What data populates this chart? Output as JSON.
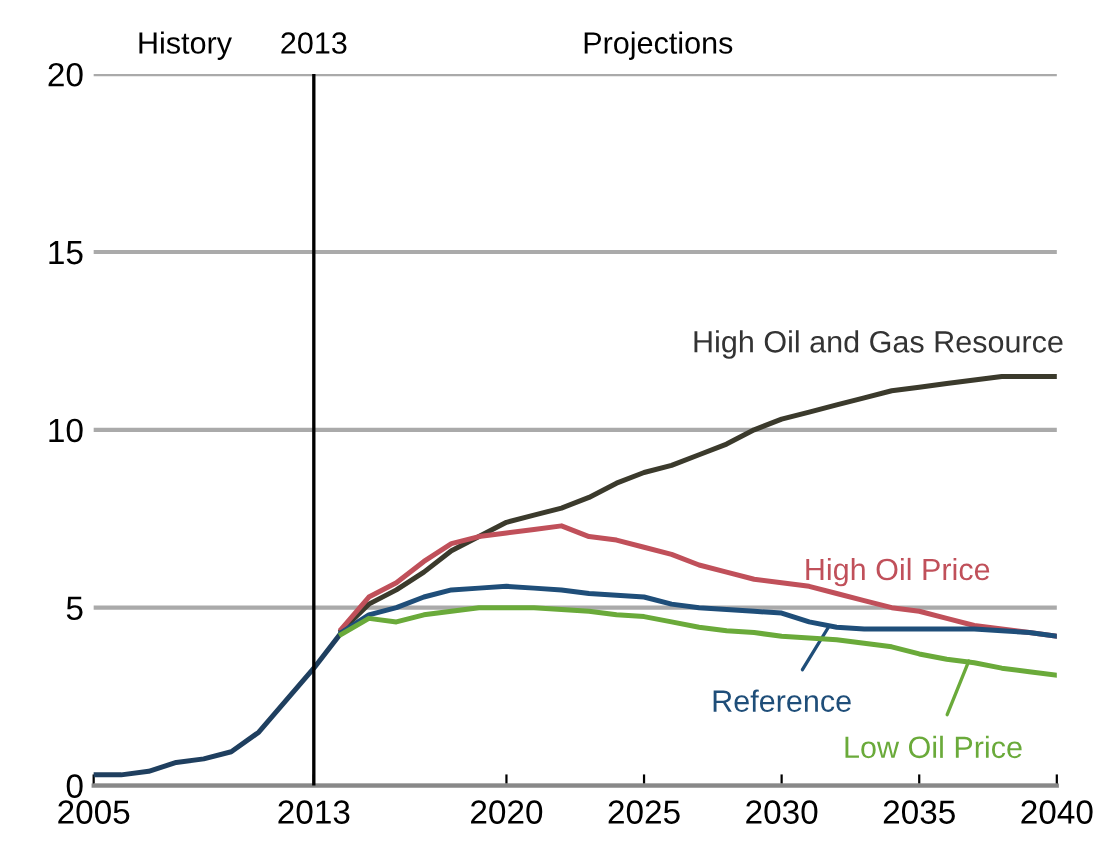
{
  "chart_data": {
    "type": "line",
    "series": [
      {
        "color": "#1f3f5f",
        "x": [
          2005,
          2006,
          2007,
          2008,
          2009,
          2010,
          2011,
          2012,
          2013,
          2014
        ],
        "values": [
          0.3,
          0.3,
          0.4,
          0.65,
          0.75,
          0.95,
          1.5,
          2.4,
          3.3,
          4.3
        ]
      },
      {
        "name": "High Oil and Gas Resource",
        "color": "#3b3a2c",
        "x": [
          2014,
          2015,
          2016,
          2017,
          2018,
          2019,
          2020,
          2021,
          2022,
          2023,
          2024,
          2025,
          2026,
          2027,
          2028,
          2029,
          2030,
          2031,
          2032,
          2033,
          2034,
          2035,
          2036,
          2037,
          2038,
          2039,
          2040
        ],
        "values": [
          4.35,
          5.1,
          5.5,
          6.0,
          6.6,
          7.0,
          7.4,
          7.6,
          7.8,
          8.1,
          8.5,
          8.8,
          9.0,
          9.3,
          9.6,
          10.0,
          10.3,
          10.5,
          10.7,
          10.9,
          11.1,
          11.2,
          11.3,
          11.4,
          11.5,
          11.5,
          11.5
        ]
      },
      {
        "name": "High Oil Price",
        "color": "#c0505a",
        "x": [
          2014,
          2015,
          2016,
          2017,
          2018,
          2019,
          2020,
          2021,
          2022,
          2023,
          2024,
          2025,
          2026,
          2027,
          2028,
          2029,
          2030,
          2031,
          2032,
          2033,
          2034,
          2035,
          2036,
          2037,
          2038,
          2039,
          2040
        ],
        "values": [
          4.4,
          5.3,
          5.7,
          6.3,
          6.8,
          7.0,
          7.1,
          7.2,
          7.3,
          7.0,
          6.9,
          6.7,
          6.5,
          6.2,
          6.0,
          5.8,
          5.7,
          5.6,
          5.4,
          5.2,
          5.0,
          4.9,
          4.7,
          4.5,
          4.4,
          4.3,
          4.2
        ]
      },
      {
        "name": "Reference",
        "color": "#1f4e79",
        "x": [
          2014,
          2015,
          2016,
          2017,
          2018,
          2019,
          2020,
          2021,
          2022,
          2023,
          2024,
          2025,
          2026,
          2027,
          2028,
          2029,
          2030,
          2031,
          2032,
          2033,
          2034,
          2035,
          2036,
          2037,
          2038,
          2039,
          2040
        ],
        "values": [
          4.3,
          4.8,
          5.0,
          5.3,
          5.5,
          5.55,
          5.6,
          5.55,
          5.5,
          5.4,
          5.35,
          5.3,
          5.1,
          5.0,
          4.95,
          4.9,
          4.85,
          4.6,
          4.45,
          4.4,
          4.4,
          4.4,
          4.4,
          4.4,
          4.35,
          4.3,
          4.2
        ]
      },
      {
        "name": "Low Oil Price",
        "color": "#6aaa3a",
        "x": [
          2014,
          2015,
          2016,
          2017,
          2018,
          2019,
          2020,
          2021,
          2022,
          2023,
          2024,
          2025,
          2026,
          2027,
          2028,
          2029,
          2030,
          2031,
          2032,
          2033,
          2034,
          2035,
          2036,
          2037,
          2038,
          2039,
          2040
        ],
        "values": [
          4.25,
          4.7,
          4.6,
          4.8,
          4.9,
          5.0,
          5.0,
          5.0,
          4.95,
          4.9,
          4.8,
          4.75,
          4.6,
          4.45,
          4.35,
          4.3,
          4.2,
          4.15,
          4.1,
          4.0,
          3.9,
          3.7,
          3.55,
          3.45,
          3.3,
          3.2,
          3.1
        ]
      }
    ],
    "xlim": [
      2005,
      2040
    ],
    "xticks": [
      2005,
      2013,
      2020,
      2025,
      2030,
      2035,
      2040
    ],
    "ylim": [
      0,
      20
    ],
    "yticks": [
      0,
      5,
      10,
      15,
      20
    ],
    "grid": "y",
    "legend": "right",
    "ref_lines": [
      {
        "axis": "x",
        "value": 2013,
        "label": "2013",
        "color": "#000000"
      }
    ],
    "annotations": [
      "History",
      "Projections"
    ]
  }
}
